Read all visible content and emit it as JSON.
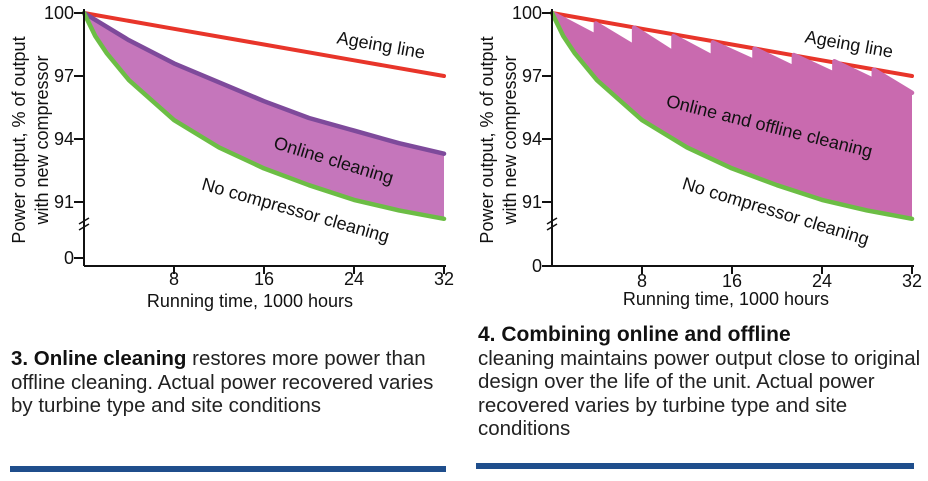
{
  "chart_data": [
    {
      "type": "area",
      "ylabel": "Power output, % of output with new compressor",
      "ylabel_lines": [
        "Power output, % of output",
        "with new compressor"
      ],
      "xlabel": "Running time, 1000 hours",
      "xlim": [
        0,
        32
      ],
      "y_ticks": [
        100,
        97,
        94,
        91,
        0
      ],
      "x_ticks": [
        8,
        16,
        24,
        32
      ],
      "series": [
        {
          "name": "Ageing line",
          "color": "#e8352a",
          "x": [
            0,
            8,
            16,
            24,
            32
          ],
          "y": [
            100,
            99.25,
            98.5,
            97.75,
            97.0
          ]
        },
        {
          "name": "Online cleaning",
          "color": "#7e4a9b",
          "x": [
            0,
            4,
            8,
            12,
            16,
            20,
            24,
            28,
            32
          ],
          "y": [
            100,
            98.7,
            97.6,
            96.7,
            95.8,
            95.0,
            94.4,
            93.8,
            93.3
          ]
        },
        {
          "name": "No compressor cleaning",
          "color": "#6cbd45",
          "x": [
            0,
            1,
            2,
            4,
            8,
            12,
            16,
            20,
            24,
            28,
            32
          ],
          "y": [
            100,
            98.9,
            98.1,
            96.8,
            94.9,
            93.6,
            92.6,
            91.8,
            91.1,
            90.6,
            90.2
          ]
        }
      ],
      "fill": {
        "between": [
          "Online cleaning",
          "No compressor cleaning"
        ],
        "color": "#c576bb"
      }
    },
    {
      "type": "area",
      "ylabel": "Power output, % of output with new compressor",
      "ylabel_lines": [
        "Power output, % of output",
        "with new compressor"
      ],
      "xlabel": "Running time, 1000 hours",
      "xlim": [
        0,
        32
      ],
      "y_ticks": [
        100,
        97,
        94,
        91,
        0
      ],
      "x_ticks": [
        8,
        16,
        24,
        32
      ],
      "series": [
        {
          "name": "Ageing line",
          "color": "#e8352a",
          "x": [
            0,
            8,
            16,
            24,
            32
          ],
          "y": [
            100,
            99.25,
            98.5,
            97.75,
            97.0
          ]
        },
        {
          "name": "Online and offline cleaning",
          "color": "#c96aaf",
          "x": [
            0,
            3.9,
            3.9,
            7.3,
            7.3,
            10.8,
            10.8,
            14.3,
            14.3,
            18,
            18,
            21.5,
            21.5,
            25.1,
            25.1,
            28.6,
            28.6,
            32
          ],
          "y": [
            100,
            98.9,
            99.5,
            98.4,
            99.3,
            98.1,
            98.9,
            97.9,
            98.6,
            97.7,
            98.3,
            97.4,
            98.0,
            97.1,
            97.7,
            96.8,
            97.3,
            96.2
          ]
        },
        {
          "name": "No compressor cleaning",
          "color": "#6cbd45",
          "x": [
            0,
            1,
            2,
            4,
            8,
            12,
            16,
            20,
            24,
            28,
            32
          ],
          "y": [
            100,
            98.9,
            98.1,
            96.8,
            94.9,
            93.6,
            92.6,
            91.8,
            91.1,
            90.6,
            90.2
          ]
        }
      ],
      "fill": {
        "between": [
          "Online and offline cleaning",
          "No compressor cleaning"
        ],
        "color": "#c96aaf"
      }
    }
  ],
  "captions": [
    {
      "lead": "3. Online cleaning",
      "body": " restores more power than offline cleaning. Actual power recovered varies by turbine type and site conditions"
    },
    {
      "lead": "4. Combining online and offline",
      "body": "cleaning maintains power output close to original design over the life of the unit. Actual power recovered varies by turbine type and site conditions"
    }
  ],
  "colors": {
    "axis": "#111111",
    "rule": "#1f4e8c"
  }
}
